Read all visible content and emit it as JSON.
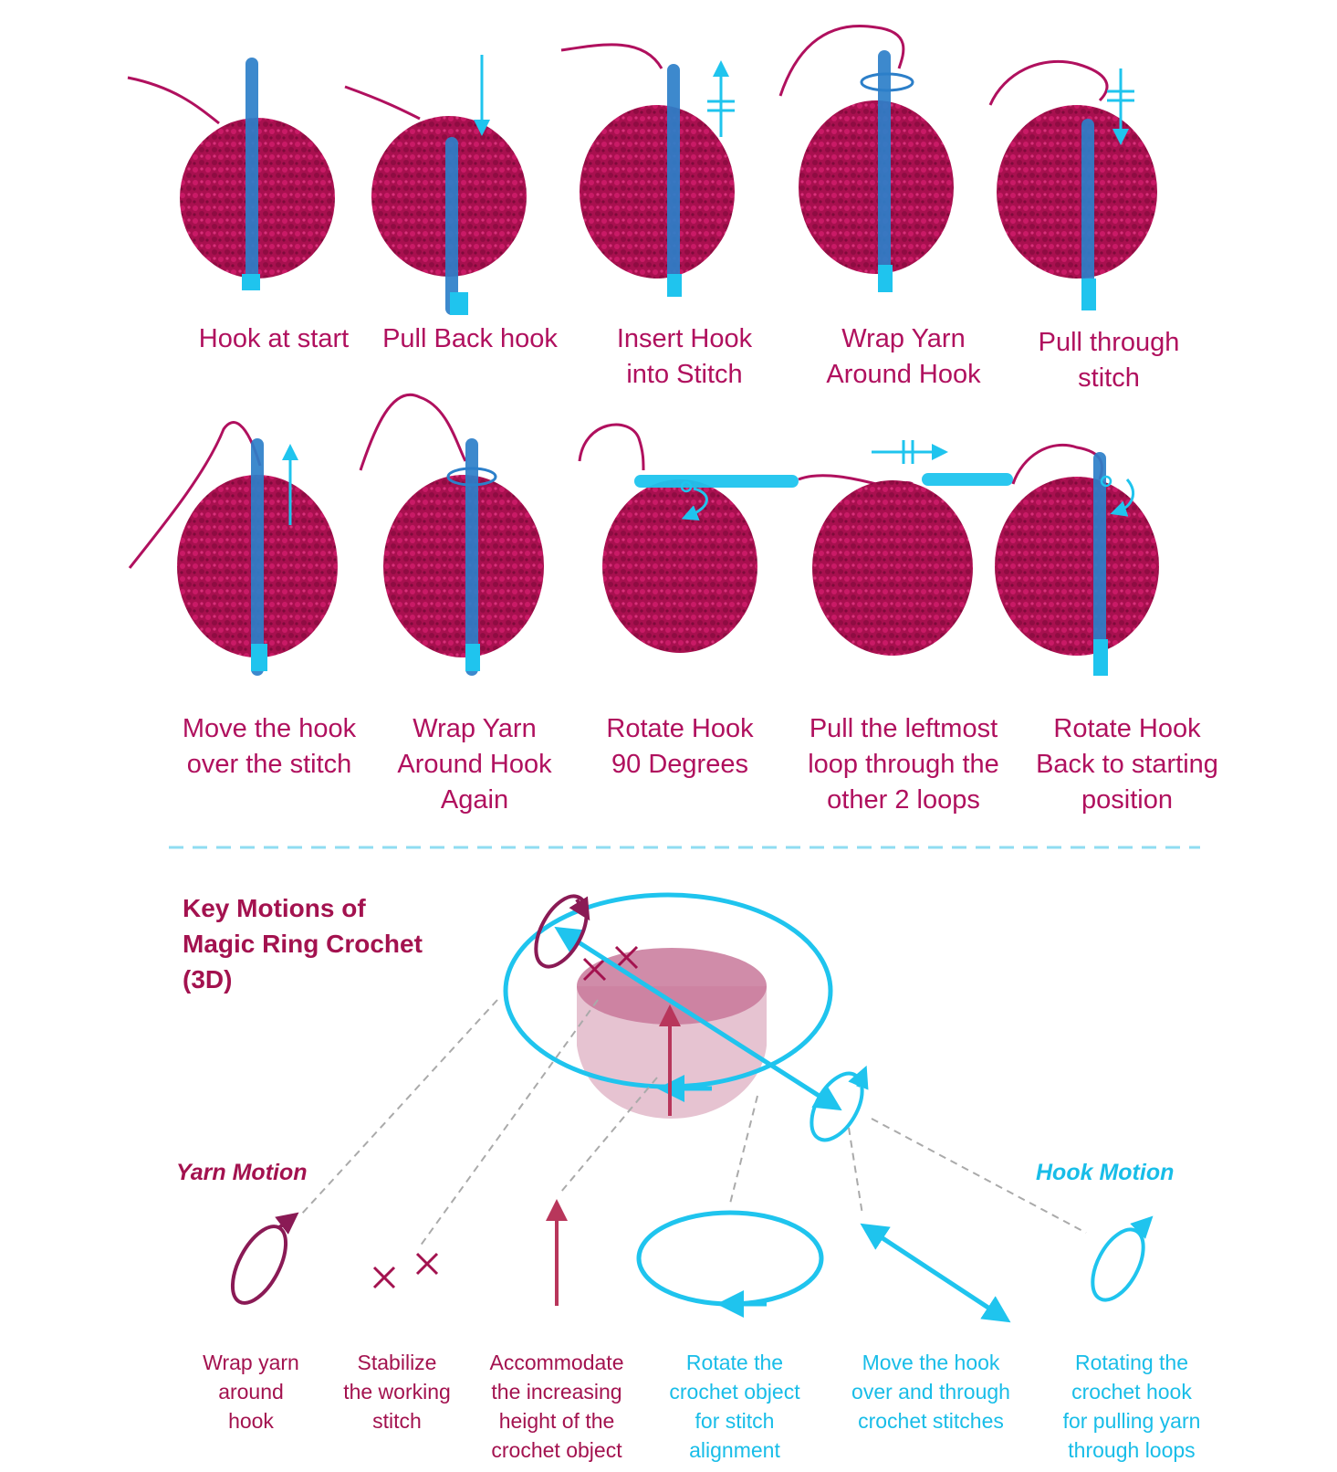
{
  "colors": {
    "yarn": "#c10f60",
    "yarn_dark": "#8a1a55",
    "hook": "#1fc4ee",
    "hook_blue": "#2c7fc9",
    "height_arrow": "#b8365b",
    "bowl": "#d9a3b8",
    "caption_top": "#b0105e",
    "yarn_caption": "#a3124f",
    "hook_caption": "#18bde8",
    "divider": "#8fdcf2",
    "leader": "#aaaaaa"
  },
  "steps": [
    {
      "label": "Hook at start"
    },
    {
      "label": "Pull Back hook"
    },
    {
      "label": "Insert Hook\ninto Stitch"
    },
    {
      "label": "Wrap Yarn\nAround Hook"
    },
    {
      "label": "Pull through\nstitch"
    },
    {
      "label": "Move the hook\nover the stitch"
    },
    {
      "label": "Wrap Yarn\nAround  Hook\nAgain"
    },
    {
      "label": "Rotate Hook\n90 Degrees"
    },
    {
      "label": "Pull the leftmost\nloop through the\nother 2 loops"
    },
    {
      "label": "Rotate Hook\nBack to starting\nposition"
    }
  ],
  "diagram": {
    "title": "Key Motions of\nMagic Ring Crochet\n(3D)",
    "yarn_motion_label": "Yarn Motion",
    "hook_motion_label": "Hook Motion",
    "legend": [
      {
        "icon": "yarn-wrap-icon",
        "label": "Wrap yarn\naround\nhook"
      },
      {
        "icon": "stabilize-cross-icon",
        "label": "Stabilize\nthe working\nstitch"
      },
      {
        "icon": "height-arrow-icon",
        "label": "Accommodate\nthe increasing\nheight of the\ncrochet object"
      },
      {
        "icon": "rotate-object-icon",
        "label": "Rotate the\ncrochet object\nfor stitch\nalignment"
      },
      {
        "icon": "move-hook-icon",
        "label": "Move the hook\nover and through\ncrochet stitches"
      },
      {
        "icon": "rotate-hook-icon",
        "label": "Rotating the\ncrochet hook\nfor pulling yarn\nthrough loops"
      }
    ]
  }
}
